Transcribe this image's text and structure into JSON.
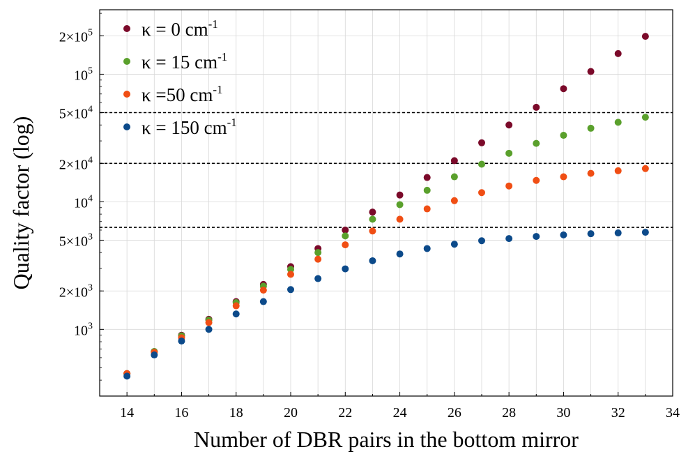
{
  "chart_data": {
    "type": "scatter",
    "title": "",
    "xlabel": "Number of DBR pairs in the bottom mirror",
    "ylabel": "Quality factor (log)",
    "xlim": [
      13,
      34
    ],
    "ylim": [
      300,
      320000
    ],
    "yscale": "log",
    "grid": true,
    "legend_position": "top-left",
    "x_ticks": [
      14,
      16,
      18,
      20,
      22,
      24,
      26,
      28,
      30,
      32,
      34
    ],
    "y_ticks": [
      {
        "value": 1000,
        "coef": "",
        "exp": "3"
      },
      {
        "value": 2000,
        "coef": "2×",
        "exp": "3"
      },
      {
        "value": 5000,
        "coef": "5×",
        "exp": "3"
      },
      {
        "value": 10000,
        "coef": "",
        "exp": "4"
      },
      {
        "value": 20000,
        "coef": "2×",
        "exp": "4"
      },
      {
        "value": 50000,
        "coef": "5×",
        "exp": "4"
      },
      {
        "value": 100000,
        "coef": "",
        "exp": "5"
      },
      {
        "value": 200000,
        "coef": "2×",
        "exp": "5"
      }
    ],
    "reference_lines": [
      50000,
      20000,
      6300
    ],
    "x": [
      14,
      15,
      16,
      17,
      18,
      19,
      20,
      21,
      22,
      23,
      24,
      25,
      26,
      27,
      28,
      29,
      30,
      31,
      32,
      33
    ],
    "series": [
      {
        "name": "κ = 0 cm-1",
        "prefix": "κ = 0 cm",
        "sup": "-1",
        "color": "#7b0a2a",
        "values": [
          450,
          670,
          900,
          1200,
          1650,
          2250,
          3100,
          4300,
          6000,
          8300,
          11300,
          15500,
          21000,
          29000,
          40000,
          55000,
          77000,
          105000,
          145000,
          198000
        ]
      },
      {
        "name": "κ = 15 cm-1",
        "prefix": "κ = 15 cm",
        "sup": "-1",
        "color": "#5aa02c",
        "values": [
          450,
          670,
          890,
          1180,
          1620,
          2180,
          2950,
          4000,
          5400,
          7300,
          9500,
          12300,
          15700,
          19700,
          24000,
          28700,
          33200,
          37700,
          42000,
          46000
        ]
      },
      {
        "name": "κ =50 cm-1",
        "prefix": "κ =50 cm",
        "sup": "-1",
        "color": "#f04e14",
        "values": [
          450,
          660,
          860,
          1130,
          1530,
          2030,
          2700,
          3550,
          4600,
          5900,
          7300,
          8800,
          10200,
          11800,
          13300,
          14700,
          15700,
          16700,
          17500,
          18200
        ]
      },
      {
        "name": "κ = 150 cm-1",
        "prefix": "κ = 150 cm",
        "sup": "-1",
        "color": "#0c4a8a",
        "values": [
          430,
          630,
          810,
          1000,
          1320,
          1650,
          2050,
          2500,
          2980,
          3450,
          3900,
          4300,
          4650,
          4950,
          5150,
          5350,
          5500,
          5620,
          5700,
          5770
        ]
      }
    ]
  }
}
